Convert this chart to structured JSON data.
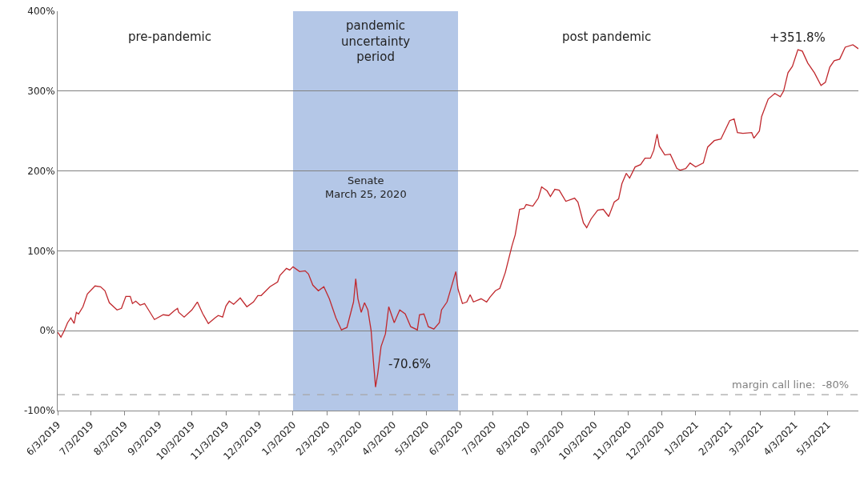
{
  "chart_data": {
    "type": "line",
    "x": [
      "2019-06-03",
      "2019-06-06",
      "2019-06-09",
      "2019-06-12",
      "2019-06-15",
      "2019-06-18",
      "2019-06-20",
      "2019-06-22",
      "2019-06-26",
      "2019-06-30",
      "2019-07-07",
      "2019-07-12",
      "2019-07-16",
      "2019-07-20",
      "2019-07-27",
      "2019-07-31",
      "2019-08-04",
      "2019-08-08",
      "2019-08-10",
      "2019-08-13",
      "2019-08-17",
      "2019-08-21",
      "2019-08-26",
      "2019-08-30",
      "2019-09-07",
      "2019-09-12",
      "2019-09-17",
      "2019-09-20",
      "2019-09-21",
      "2019-09-26",
      "2019-10-03",
      "2019-10-08",
      "2019-10-13",
      "2019-10-18",
      "2019-10-24",
      "2019-10-27",
      "2019-10-31",
      "2019-11-03",
      "2019-11-06",
      "2019-11-10",
      "2019-11-16",
      "2019-11-22",
      "2019-11-28",
      "2019-12-02",
      "2019-12-05",
      "2019-12-13",
      "2019-12-20",
      "2019-12-22",
      "2019-12-28",
      "2019-12-31",
      "2020-01-03",
      "2020-01-09",
      "2020-01-14",
      "2020-01-17",
      "2020-01-21",
      "2020-01-26",
      "2020-01-31",
      "2020-02-05",
      "2020-02-11",
      "2020-02-16",
      "2020-02-21",
      "2020-02-27",
      "2020-02-29",
      "2020-03-02",
      "2020-03-05",
      "2020-03-08",
      "2020-03-11",
      "2020-03-14",
      "2020-03-16",
      "2020-03-18",
      "2020-03-20",
      "2020-03-23",
      "2020-03-27",
      "2020-03-30",
      "2020-04-04",
      "2020-04-09",
      "2020-04-14",
      "2020-04-19",
      "2020-04-25",
      "2020-04-27",
      "2020-05-01",
      "2020-05-05",
      "2020-05-10",
      "2020-05-15",
      "2020-05-17",
      "2020-05-22",
      "2020-05-26",
      "2020-05-30",
      "2020-06-01",
      "2020-06-05",
      "2020-06-09",
      "2020-06-12",
      "2020-06-15",
      "2020-06-22",
      "2020-06-27",
      "2020-06-30",
      "2020-07-05",
      "2020-07-09",
      "2020-07-14",
      "2020-07-20",
      "2020-07-23",
      "2020-07-27",
      "2020-07-31",
      "2020-08-02",
      "2020-08-08",
      "2020-08-13",
      "2020-08-16",
      "2020-08-21",
      "2020-08-24",
      "2020-08-28",
      "2020-09-01",
      "2020-09-07",
      "2020-09-15",
      "2020-09-18",
      "2020-09-23",
      "2020-09-26",
      "2020-09-30",
      "2020-10-06",
      "2020-10-11",
      "2020-10-16",
      "2020-10-21",
      "2020-10-25",
      "2020-10-28",
      "2020-11-01",
      "2020-11-04",
      "2020-11-09",
      "2020-11-14",
      "2020-11-18",
      "2020-11-23",
      "2020-11-26",
      "2020-11-29",
      "2020-12-01",
      "2020-12-06",
      "2020-12-11",
      "2020-12-17",
      "2020-12-20",
      "2020-12-25",
      "2020-12-29",
      "2021-01-03",
      "2021-01-10",
      "2021-01-14",
      "2021-01-20",
      "2021-01-26",
      "2021-02-03",
      "2021-02-07",
      "2021-02-10",
      "2021-02-15",
      "2021-02-23",
      "2021-02-25",
      "2021-03-02",
      "2021-03-04",
      "2021-03-10",
      "2021-03-16",
      "2021-03-21",
      "2021-03-24",
      "2021-03-28",
      "2021-04-01",
      "2021-04-06",
      "2021-04-10",
      "2021-04-15",
      "2021-04-21",
      "2021-04-27",
      "2021-05-01",
      "2021-05-05",
      "2021-05-09",
      "2021-05-14",
      "2021-05-19",
      "2021-05-26",
      "2021-05-31"
    ],
    "series": [
      {
        "color": "#c0282d",
        "values": [
          -2,
          -8,
          0,
          10,
          16,
          9,
          23,
          21,
          30,
          46,
          56,
          55,
          50,
          35,
          26,
          28,
          43,
          43,
          34,
          37,
          32,
          34,
          23,
          14,
          20,
          19,
          25,
          28,
          23,
          17,
          26,
          36,
          21,
          9,
          16,
          19,
          17,
          31,
          37,
          33,
          41,
          30,
          36,
          44,
          44,
          55,
          61,
          69,
          78,
          76,
          80,
          74,
          75,
          71,
          57,
          50,
          55,
          40,
          16,
          1,
          4,
          36,
          65,
          40,
          23,
          35,
          26,
          0,
          -37,
          -70.6,
          -54,
          -20,
          -4,
          30,
          10,
          26,
          21,
          5,
          1,
          20,
          21,
          5,
          2,
          10,
          26,
          36,
          55,
          74,
          52,
          34,
          36,
          45,
          36,
          40,
          36,
          42,
          50,
          53,
          73,
          106,
          120,
          152,
          153,
          158,
          156,
          166,
          180,
          175,
          168,
          177,
          176,
          162,
          166,
          161,
          135,
          129,
          140,
          151,
          152,
          143,
          161,
          165,
          184,
          197,
          191,
          205,
          208,
          216,
          216,
          226,
          246,
          231,
          220,
          221,
          203,
          201,
          203,
          210,
          205,
          210,
          230,
          238,
          240,
          263,
          265,
          248,
          247,
          248,
          241,
          250,
          268,
          290,
          297,
          293,
          300,
          323,
          331,
          351.8,
          350,
          335,
          323,
          307,
          311,
          330,
          338,
          340,
          355,
          358,
          353
        ]
      }
    ],
    "xlim": [
      "2019-06-03",
      "2021-05-31"
    ],
    "xticks": [
      {
        "value": "2019-06-03",
        "label": "6/3/2019"
      },
      {
        "value": "2019-07-03",
        "label": "7/3/2019"
      },
      {
        "value": "2019-08-03",
        "label": "8/3/2019"
      },
      {
        "value": "2019-09-03",
        "label": "9/3/2019"
      },
      {
        "value": "2019-10-03",
        "label": "10/3/2019"
      },
      {
        "value": "2019-11-03",
        "label": "11/3/2019"
      },
      {
        "value": "2019-12-03",
        "label": "12/3/2019"
      },
      {
        "value": "2020-01-03",
        "label": "1/3/2020"
      },
      {
        "value": "2020-02-03",
        "label": "2/3/2020"
      },
      {
        "value": "2020-03-03",
        "label": "3/3/2020"
      },
      {
        "value": "2020-04-03",
        "label": "4/3/2020"
      },
      {
        "value": "2020-05-03",
        "label": "5/3/2020"
      },
      {
        "value": "2020-06-03",
        "label": "6/3/2020"
      },
      {
        "value": "2020-07-03",
        "label": "7/3/2020"
      },
      {
        "value": "2020-08-03",
        "label": "8/3/2020"
      },
      {
        "value": "2020-09-03",
        "label": "9/3/2020"
      },
      {
        "value": "2020-10-03",
        "label": "10/3/2020"
      },
      {
        "value": "2020-11-03",
        "label": "11/3/2020"
      },
      {
        "value": "2020-12-03",
        "label": "12/3/2020"
      },
      {
        "value": "2021-01-03",
        "label": "1/3/2021"
      },
      {
        "value": "2021-02-03",
        "label": "2/3/2021"
      },
      {
        "value": "2021-03-03",
        "label": "3/3/2021"
      },
      {
        "value": "2021-04-03",
        "label": "4/3/2021"
      },
      {
        "value": "2021-05-03",
        "label": "5/3/2021"
      }
    ],
    "ylim": [
      -100,
      400
    ],
    "yticks": [
      {
        "value": -100,
        "label": "-100%"
      },
      {
        "value": 0,
        "label": "0%"
      },
      {
        "value": 100,
        "label": "100%"
      },
      {
        "value": 200,
        "label": "200%"
      },
      {
        "value": 300,
        "label": "300%"
      },
      {
        "value": 400,
        "label": "400%"
      }
    ],
    "grid": "y",
    "marker": "none",
    "line_style": "solid",
    "bands": [
      {
        "axis": "x",
        "from": "2020-01-03",
        "to": "2020-06-01",
        "label": "pandemic\nuncertainty\nperiod",
        "color": "#b4c7e7"
      }
    ],
    "ref_lines": [
      {
        "axis": "y",
        "value": -80,
        "label": "margin call line:  -80%",
        "color": "#a6a6a6",
        "line_style": "dashed"
      }
    ],
    "annotations": [
      "pre-pandemic",
      "post pandemic",
      "Senate\nMarch 25, 2020",
      {
        "text": "-70.6%",
        "x": "2020-03-18",
        "y": -70.6
      },
      {
        "text": "+351.8%",
        "x": "2021-04-06",
        "y": 351.8
      }
    ]
  }
}
